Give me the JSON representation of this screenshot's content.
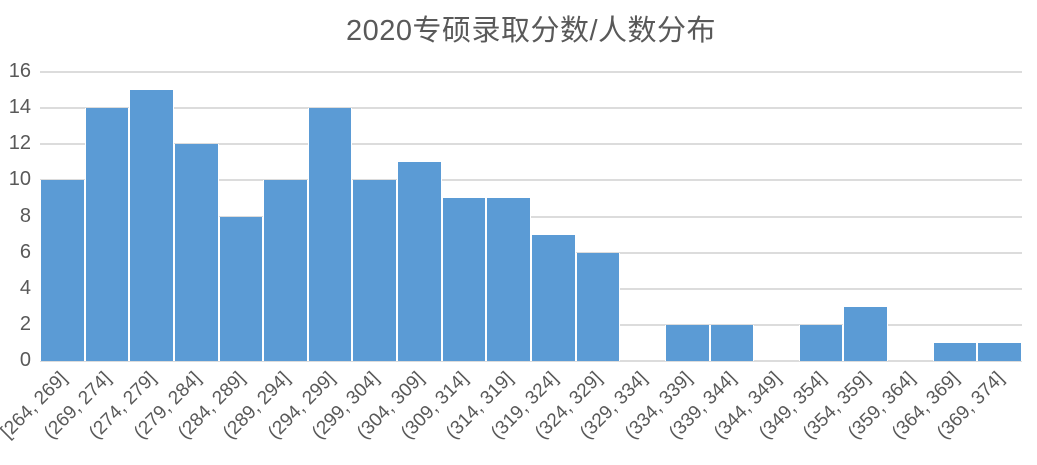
{
  "chart": {
    "colors": {
      "bar_fill": "#5b9bd5",
      "bar_separator": "#ffffff",
      "gridline": "#dcdcdc",
      "text": "#595959",
      "background": "#ffffff"
    }
  },
  "chart_data": {
    "type": "bar",
    "title": "2020专硕录取分数/人数分布",
    "categories": [
      "[264, 269]",
      "(269, 274]",
      "(274, 279]",
      "(279, 284]",
      "(284, 289]",
      "(289, 294]",
      "(294, 299]",
      "(299, 304]",
      "(304, 309]",
      "(309, 314]",
      "(314, 319]",
      "(319, 324]",
      "(324, 329]",
      "(329, 334]",
      "(334, 339]",
      "(339, 344]",
      "(344, 349]",
      "(349, 354]",
      "(354, 359]",
      "(359, 364]",
      "(364, 369]",
      "(369, 374]"
    ],
    "values": [
      10,
      14,
      15,
      12,
      8,
      10,
      14,
      10,
      11,
      9,
      9,
      7,
      6,
      0,
      2,
      2,
      0,
      2,
      3,
      0,
      1,
      1
    ],
    "xlabel": "",
    "ylabel": "",
    "ylim": [
      0,
      16
    ],
    "yticks": [
      0,
      2,
      4,
      6,
      8,
      10,
      12,
      14,
      16
    ],
    "grid": true,
    "legend": false,
    "xtick_rotation_deg": -45
  }
}
